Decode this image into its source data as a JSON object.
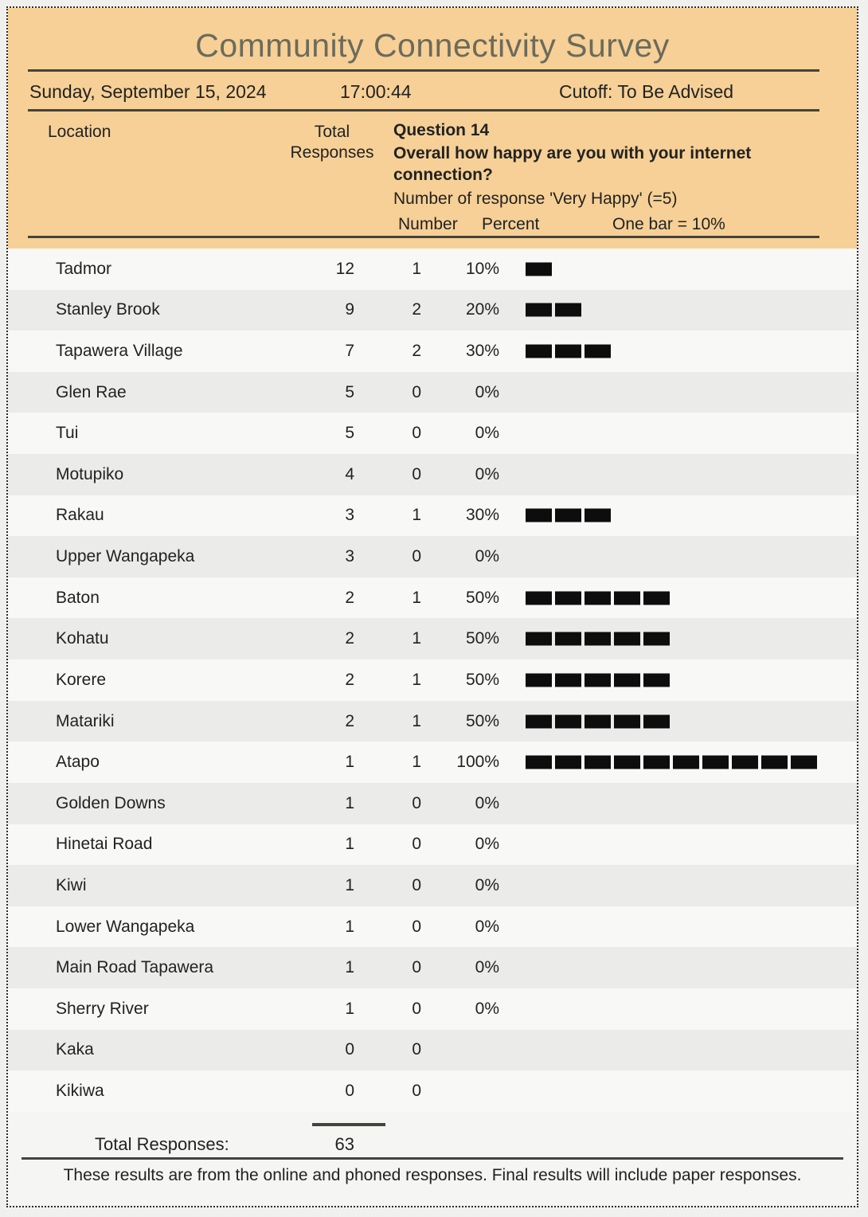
{
  "header": {
    "title": "Community Connectivity Survey",
    "date": "Sunday, September 15, 2024",
    "time": "17:00:44",
    "cutoff": "Cutoff: To Be Advised",
    "col_location": "Location",
    "col_total_line1": "Total",
    "col_total_line2": "Responses",
    "question_label": "Question 14",
    "question_text": "Overall how happy are you with your internet\nconnection?",
    "question_sub": "Number of response  'Very Happy' (=5)",
    "col_number": "Number",
    "col_percent": "Percent",
    "bar_legend": "One bar = 10%"
  },
  "chart_data": {
    "type": "bar",
    "title": "Community Connectivity Survey",
    "question": "Question 14: Overall how happy are you with your internet connection? Number of response 'Very Happy' (=5)",
    "columns": [
      "Location",
      "Total Responses",
      "Number",
      "Percent"
    ],
    "bar_unit_percent": 10,
    "legend": "One bar = 10%",
    "rows": [
      {
        "location": "Tadmor",
        "total": 12,
        "number": 1,
        "percent": "10%",
        "bars": 1
      },
      {
        "location": "Stanley Brook",
        "total": 9,
        "number": 2,
        "percent": "20%",
        "bars": 2
      },
      {
        "location": "Tapawera Village",
        "total": 7,
        "number": 2,
        "percent": "30%",
        "bars": 3
      },
      {
        "location": "Glen Rae",
        "total": 5,
        "number": 0,
        "percent": "0%",
        "bars": 0
      },
      {
        "location": "Tui",
        "total": 5,
        "number": 0,
        "percent": "0%",
        "bars": 0
      },
      {
        "location": "Motupiko",
        "total": 4,
        "number": 0,
        "percent": "0%",
        "bars": 0
      },
      {
        "location": "Rakau",
        "total": 3,
        "number": 1,
        "percent": "30%",
        "bars": 3
      },
      {
        "location": "Upper Wangapeka",
        "total": 3,
        "number": 0,
        "percent": "0%",
        "bars": 0
      },
      {
        "location": "Baton",
        "total": 2,
        "number": 1,
        "percent": "50%",
        "bars": 5
      },
      {
        "location": "Kohatu",
        "total": 2,
        "number": 1,
        "percent": "50%",
        "bars": 5
      },
      {
        "location": "Korere",
        "total": 2,
        "number": 1,
        "percent": "50%",
        "bars": 5
      },
      {
        "location": "Matariki",
        "total": 2,
        "number": 1,
        "percent": "50%",
        "bars": 5
      },
      {
        "location": "Atapo",
        "total": 1,
        "number": 1,
        "percent": "100%",
        "bars": 10
      },
      {
        "location": "Golden Downs",
        "total": 1,
        "number": 0,
        "percent": "0%",
        "bars": 0
      },
      {
        "location": "Hinetai Road",
        "total": 1,
        "number": 0,
        "percent": "0%",
        "bars": 0
      },
      {
        "location": "Kiwi",
        "total": 1,
        "number": 0,
        "percent": "0%",
        "bars": 0
      },
      {
        "location": "Lower Wangapeka",
        "total": 1,
        "number": 0,
        "percent": "0%",
        "bars": 0
      },
      {
        "location": "Main Road Tapawera",
        "total": 1,
        "number": 0,
        "percent": "0%",
        "bars": 0
      },
      {
        "location": "Sherry River",
        "total": 1,
        "number": 0,
        "percent": "0%",
        "bars": 0
      },
      {
        "location": "Kaka",
        "total": 0,
        "number": 0,
        "percent": "",
        "bars": 0
      },
      {
        "location": "Kikiwa",
        "total": 0,
        "number": 0,
        "percent": "",
        "bars": 0
      }
    ],
    "total_responses": 63
  },
  "totals": {
    "label": "Total Responses:",
    "value": "63"
  },
  "footer": {
    "note": "These results are from the online and phoned responses. Final results will include paper responses."
  },
  "colors": {
    "header_bg": "#f6d096",
    "title": "#6c6a5b",
    "bar": "#0d0d0d",
    "row_light": "#f8f8f7",
    "row_gray": "#ebebea",
    "rule": "#45433c"
  }
}
